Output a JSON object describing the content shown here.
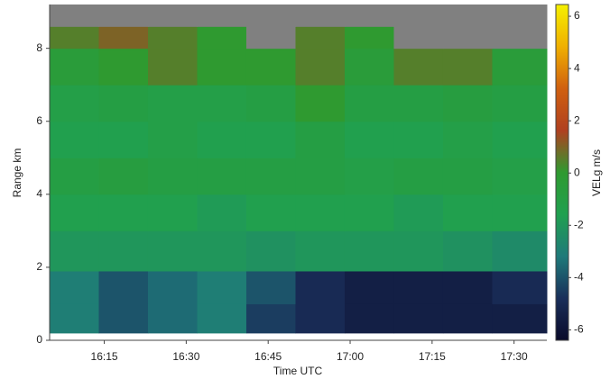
{
  "chart_data": {
    "type": "heatmap",
    "x_label": "Time UTC",
    "y_label": "Range km",
    "colorbar_label": "VELg m/s",
    "xlim": [
      965,
      1056
    ],
    "ylim": [
      0,
      9.2
    ],
    "xticks": [
      {
        "value": 975,
        "label": "16:15"
      },
      {
        "value": 990,
        "label": "16:30"
      },
      {
        "value": 1005,
        "label": "16:45"
      },
      {
        "value": 1020,
        "label": "17:00"
      },
      {
        "value": 1035,
        "label": "17:15"
      },
      {
        "value": 1050,
        "label": "17:30"
      }
    ],
    "yticks": [
      0,
      2,
      4,
      6,
      8
    ],
    "x_bins": [
      965,
      974,
      983,
      992,
      1001,
      1010,
      1019,
      1028,
      1037,
      1046,
      1056
    ],
    "y_bins": [
      0.2,
      1,
      1.9,
      3,
      4,
      5,
      6,
      7,
      8,
      8.6,
      9.2
    ],
    "z": [
      [
        -3,
        -4,
        -3.5,
        -3,
        -4.5,
        -5,
        -5.5,
        -5.5,
        -5.5,
        -5.5
      ],
      [
        -3,
        -4,
        -3.5,
        -3,
        -4,
        -5,
        -5.5,
        -5.5,
        -5.5,
        -5
      ],
      [
        -2,
        -2,
        -2,
        -2,
        -2.2,
        -2,
        -2,
        -2,
        -2.2,
        -2.5
      ],
      [
        -1.5,
        -1.5,
        -1.5,
        -1.8,
        -1.5,
        -1.5,
        -1.5,
        -1.8,
        -1.5,
        -1.5
      ],
      [
        -1,
        -0.8,
        -1,
        -1,
        -1,
        -1,
        -1.2,
        -1,
        -1,
        -1.2
      ],
      [
        -1.5,
        -1.5,
        -1.2,
        -1.5,
        -1.5,
        -1,
        -1.5,
        -1.5,
        -1.2,
        -1.5
      ],
      [
        -1.2,
        -1,
        -1.2,
        -1.2,
        -1,
        0,
        -1,
        -1,
        -0.8,
        -1
      ],
      [
        -0.5,
        0,
        0.5,
        0,
        0,
        0.5,
        -0.5,
        0.5,
        0.5,
        -0.5
      ],
      [
        0.5,
        1,
        0.5,
        0,
        null,
        0.5,
        0,
        null,
        null,
        null
      ],
      [
        null,
        null,
        null,
        null,
        null,
        null,
        null,
        null,
        null,
        null
      ]
    ],
    "clim": [
      -6.4,
      6.45
    ],
    "cticks": [
      6,
      4,
      2,
      0,
      -2,
      -4,
      -6
    ],
    "colorscale": [
      "#0a0a2a",
      "#1a2f5a",
      "#1f7a7a",
      "#20a050",
      "#2f9a30",
      "#b04020",
      "#d06010",
      "#f0b000",
      "#f5f000"
    ],
    "missing_color": "#808080"
  }
}
